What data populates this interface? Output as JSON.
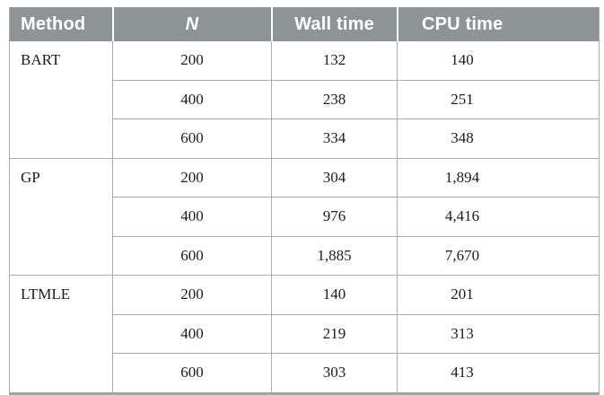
{
  "table": {
    "header": {
      "method": "Method",
      "n": "N",
      "wall_time": "Wall time",
      "cpu_time": "CPU time"
    },
    "groups": [
      {
        "method": "BART",
        "rows": [
          {
            "n": "200",
            "wall": "132",
            "cpu": "140"
          },
          {
            "n": "400",
            "wall": "238",
            "cpu": "251"
          },
          {
            "n": "600",
            "wall": "334",
            "cpu": "348"
          }
        ]
      },
      {
        "method": "GP",
        "rows": [
          {
            "n": "200",
            "wall": "304",
            "cpu": "1,894"
          },
          {
            "n": "400",
            "wall": "976",
            "cpu": "4,416"
          },
          {
            "n": "600",
            "wall": "1,885",
            "cpu": "7,670"
          }
        ]
      },
      {
        "method": "LTMLE",
        "rows": [
          {
            "n": "200",
            "wall": "140",
            "cpu": "201"
          },
          {
            "n": "400",
            "wall": "219",
            "cpu": "313"
          },
          {
            "n": "600",
            "wall": "303",
            "cpu": "413"
          }
        ]
      }
    ],
    "colors": {
      "header_bg": "#8e9396",
      "header_text": "#ffffff",
      "grid_line": "#a9abad",
      "bottom_border": "#a2a6a3",
      "body_text": "#1b1b1b"
    }
  },
  "chart_data": {
    "type": "table",
    "columns": [
      "Method",
      "N",
      "Wall time",
      "CPU time"
    ],
    "rows": [
      [
        "BART",
        200,
        132,
        140
      ],
      [
        "BART",
        400,
        238,
        251
      ],
      [
        "BART",
        600,
        334,
        348
      ],
      [
        "GP",
        200,
        304,
        1894
      ],
      [
        "GP",
        400,
        976,
        4416
      ],
      [
        "GP",
        600,
        1885,
        7670
      ],
      [
        "LTMLE",
        200,
        140,
        201
      ],
      [
        "LTMLE",
        400,
        219,
        313
      ],
      [
        "LTMLE",
        600,
        303,
        413
      ]
    ]
  }
}
